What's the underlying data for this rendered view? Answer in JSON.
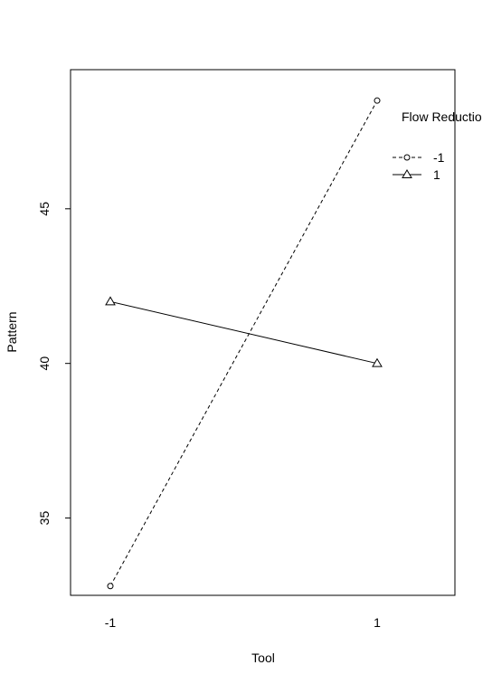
{
  "chart_data": {
    "type": "line",
    "title": "",
    "xlabel": "Tool",
    "ylabel": "Pattern",
    "categories": [
      "-1",
      "1"
    ],
    "ylim": [
      32.5,
      49.5
    ],
    "yticks": [
      35,
      40,
      45
    ],
    "grid": false,
    "legend": {
      "title": "Flow Reductio",
      "placement": "top-right",
      "entries": [
        "-1",
        "1"
      ]
    },
    "series": [
      {
        "name": "-1",
        "values": [
          32.8,
          48.5
        ],
        "line_style": "dashed",
        "marker": "circle"
      },
      {
        "name": "1",
        "values": [
          42.0,
          40.0
        ],
        "line_style": "solid",
        "marker": "triangle"
      }
    ]
  }
}
